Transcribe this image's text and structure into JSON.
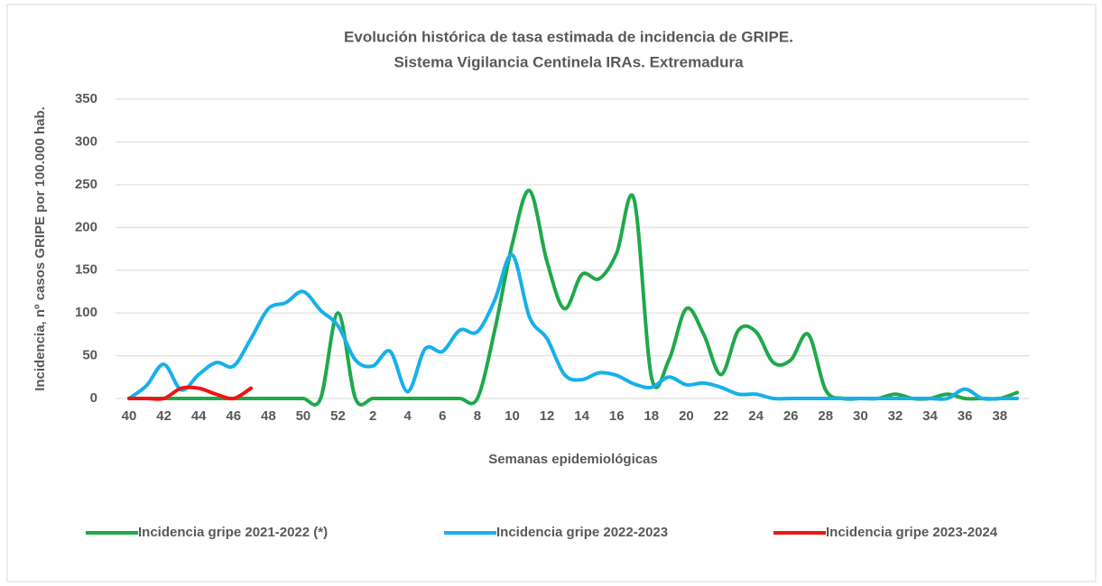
{
  "chart_data": {
    "type": "line",
    "title": "Evolución histórica de tasa estimada de  incidencia de GRIPE.",
    "subtitle": "Sistema Vigilancia Centinela IRAs. Extremadura",
    "x_label": "Semanas epidemiológicas",
    "y_label": "Incidencia, nº casos GRIPE  por 100.000 hab.",
    "categories": [
      40,
      null,
      42,
      null,
      44,
      null,
      46,
      null,
      48,
      null,
      50,
      null,
      52,
      null,
      2,
      null,
      4,
      null,
      6,
      null,
      8,
      null,
      10,
      null,
      12,
      null,
      14,
      null,
      16,
      null,
      18,
      null,
      20,
      null,
      22,
      null,
      24,
      null,
      26,
      null,
      28,
      null,
      30,
      null,
      32,
      null,
      34,
      null,
      36,
      null,
      38,
      null
    ],
    "series": [
      {
        "name": "Incidencia gripe 2021-2022 (*)",
        "color": "#1fa94b",
        "values": [
          0,
          0,
          0,
          0,
          0,
          0,
          0,
          0,
          0,
          0,
          0,
          0,
          100,
          0,
          0,
          0,
          0,
          0,
          0,
          0,
          0,
          80,
          180,
          243,
          160,
          105,
          145,
          140,
          170,
          233,
          25,
          45,
          105,
          75,
          28,
          80,
          78,
          42,
          45,
          75,
          10,
          0,
          0,
          0,
          5,
          0,
          0,
          5,
          0,
          0,
          0,
          7
        ]
      },
      {
        "name": "Incidencia gripe 2022-2023",
        "color": "#17b0ea",
        "values": [
          0,
          15,
          40,
          10,
          28,
          42,
          38,
          70,
          105,
          112,
          125,
          103,
          85,
          45,
          38,
          55,
          8,
          58,
          55,
          80,
          78,
          115,
          168,
          95,
          70,
          28,
          22,
          30,
          27,
          17,
          13,
          25,
          16,
          18,
          13,
          5,
          5,
          0,
          0,
          0,
          0,
          0,
          0,
          0,
          0,
          0,
          0,
          0,
          11,
          0,
          0,
          0
        ]
      },
      {
        "name": "Incidencia gripe 2023-2024",
        "color": "#f01414",
        "values": [
          0,
          0,
          0,
          12,
          12,
          5,
          0,
          12,
          null,
          null,
          null,
          null,
          null,
          null,
          null,
          null,
          null,
          null,
          null,
          null,
          null,
          null,
          null,
          null,
          null,
          null,
          null,
          null,
          null,
          null,
          null,
          null,
          null,
          null,
          null,
          null,
          null,
          null,
          null,
          null,
          null,
          null,
          null,
          null,
          null,
          null,
          null,
          null,
          null,
          null,
          null,
          null
        ]
      }
    ],
    "ylim": [
      0,
      350
    ],
    "yticks": [
      0,
      50,
      100,
      150,
      200,
      250,
      300,
      350
    ],
    "grid": true,
    "legend": "bottom"
  }
}
